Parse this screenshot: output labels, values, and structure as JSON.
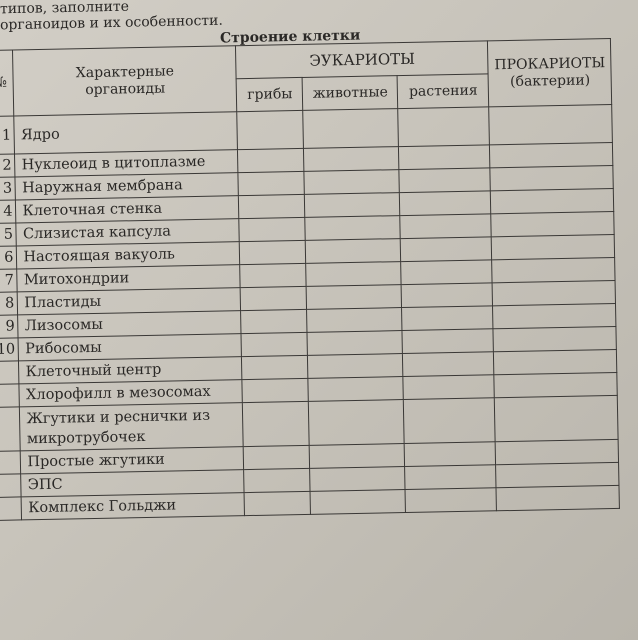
{
  "intro_lines": [
    "типов, заполните",
    "органоидов и их особенности."
  ],
  "title": "Строение клетки",
  "headers": {
    "num": "№",
    "organoids": "Характерные органоиды",
    "eukaryotes": "ЭУКАРИОТЫ",
    "fungi": "грибы",
    "animals": "животные",
    "plants": "растения",
    "prokaryotes": "ПРОКАРИОТЫ",
    "prokaryotes_sub": "(бактерии)"
  },
  "rows": [
    {
      "num": "1",
      "name": "Ядро"
    },
    {
      "num": "2",
      "name": "Нуклеоид в цитоплазме"
    },
    {
      "num": "3",
      "name": "Наружная мембрана"
    },
    {
      "num": "4",
      "name": "Клеточная стенка"
    },
    {
      "num": "5",
      "name": "Слизистая капсула"
    },
    {
      "num": "6",
      "name": "Настоящая вакуоль"
    },
    {
      "num": "7",
      "name": "Митохондрии"
    },
    {
      "num": "8",
      "name": "Пластиды"
    },
    {
      "num": "9",
      "name": "Лизосомы"
    },
    {
      "num": "10",
      "name": "Рибосомы"
    },
    {
      "num": "",
      "name": "Клеточный центр"
    },
    {
      "num": "",
      "name": "Хлорофилл в мезосомах"
    },
    {
      "num": "",
      "name": "Жгутики и реснички из микротрубочек"
    },
    {
      "num": "",
      "name": "Простые жгутики"
    },
    {
      "num": "",
      "name": "ЭПС"
    },
    {
      "num": "",
      "name": "Комплекс Гольджи"
    }
  ]
}
